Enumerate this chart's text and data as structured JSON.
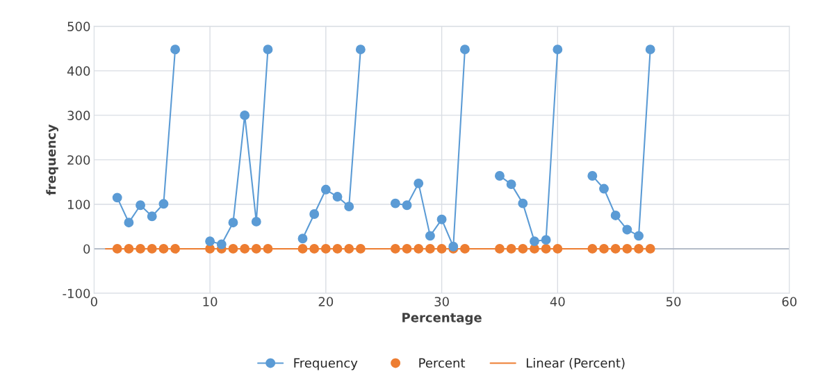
{
  "chart_data": {
    "type": "line",
    "xlabel": "Percentage",
    "ylabel": "frequency",
    "x": [
      2,
      3,
      4,
      5,
      6,
      7,
      8,
      9,
      10,
      11,
      12,
      13,
      14,
      15,
      16,
      17,
      18,
      19,
      20,
      21,
      22,
      23,
      24,
      25,
      26,
      27,
      28,
      29,
      30,
      31,
      32,
      33,
      34,
      35,
      36,
      37,
      38,
      39,
      40,
      41,
      42,
      43,
      44,
      45,
      46,
      47,
      48
    ],
    "series": [
      {
        "name": "Frequency",
        "color": "#5b9bd5",
        "marker": "circle",
        "values": [
          115,
          59,
          98,
          73,
          101,
          448,
          null,
          null,
          17,
          10,
          59,
          300,
          61,
          448,
          null,
          null,
          23,
          78,
          133,
          117,
          95,
          448,
          null,
          null,
          102,
          98,
          147,
          29,
          66,
          5,
          448,
          null,
          null,
          164,
          145,
          102,
          17,
          20,
          448,
          null,
          null,
          164,
          135,
          75,
          43,
          29,
          448
        ]
      },
      {
        "name": "Percent",
        "type": "scatter",
        "color": "#ed7d31",
        "marker": "circle",
        "values": [
          0,
          0,
          0,
          0,
          0,
          0,
          null,
          null,
          0,
          0,
          0,
          0,
          0,
          0,
          null,
          null,
          0,
          0,
          0,
          0,
          0,
          0,
          null,
          null,
          0,
          0,
          0,
          0,
          0,
          0,
          0,
          null,
          null,
          0,
          0,
          0,
          0,
          0,
          0,
          null,
          null,
          0,
          0,
          0,
          0,
          0,
          0
        ]
      },
      {
        "name": "Linear (Percent)",
        "color": "#ed7d31",
        "x": [
          1,
          48
        ],
        "values": [
          0,
          0
        ]
      }
    ],
    "xlim": [
      0,
      60
    ],
    "xticks": [
      0,
      10,
      20,
      30,
      40,
      50,
      60
    ],
    "ylim": [
      -100,
      500
    ],
    "yticks": [
      -100,
      0,
      100,
      200,
      300,
      400,
      500
    ],
    "grid": true,
    "legend": "bottom"
  }
}
